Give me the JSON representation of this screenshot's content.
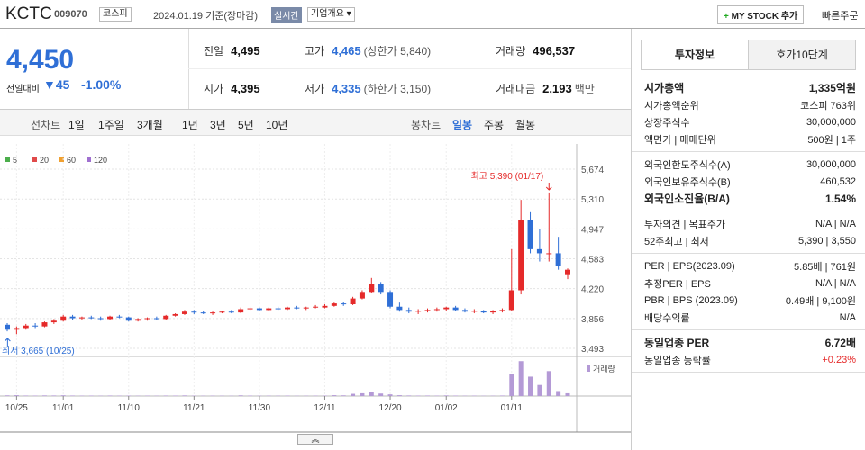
{
  "header": {
    "name": "KCTC",
    "code": "009070",
    "market": "코스피",
    "date": "2024.01.19 기준(장마감)",
    "realtime": "실시간",
    "overview": "기업개요",
    "mystock": "MY STOCK 추가",
    "quick_order": "빠른주문"
  },
  "price": {
    "current": "4,450",
    "change_label": "전일대비",
    "change": "45",
    "change_pct": "-1.00%"
  },
  "quote": {
    "rows": [
      [
        {
          "label": "전일",
          "value": "4,495"
        },
        {
          "label": "고가",
          "value": "4,465",
          "note": "(상한가 5,840)"
        },
        {
          "label": "거래량",
          "value": "496,537"
        }
      ],
      [
        {
          "label": "시가",
          "value": "4,395"
        },
        {
          "label": "저가",
          "value": "4,335",
          "note": "(하한가 3,150)"
        },
        {
          "label": "거래대금",
          "value": "2,193",
          "note": "백만"
        }
      ]
    ]
  },
  "toolbar": {
    "line_label": "선차트",
    "line_periods": [
      "1일",
      "1주일",
      "3개월",
      "1년",
      "3년",
      "5년",
      "10년"
    ],
    "candle_label": "봉차트",
    "candle_periods": [
      "일봉",
      "주봉",
      "월봉"
    ]
  },
  "chart_data": {
    "type": "candlestick",
    "up_color": "#e52a2a",
    "down_color": "#2f6fd6",
    "ma_legend": [
      {
        "name": "5",
        "color": "#4cae4c"
      },
      {
        "name": "20",
        "color": "#e04a4a"
      },
      {
        "name": "60",
        "color": "#f0a030"
      },
      {
        "name": "120",
        "color": "#a070d0"
      }
    ],
    "categories": [
      null,
      "10/25",
      null,
      null,
      null,
      null,
      "11/01",
      null,
      null,
      null,
      null,
      null,
      null,
      "11/10",
      null,
      null,
      null,
      null,
      null,
      null,
      "11/21",
      null,
      null,
      null,
      null,
      null,
      null,
      "11/30",
      null,
      null,
      null,
      null,
      null,
      null,
      "12/11",
      null,
      null,
      null,
      null,
      null,
      null,
      "12/20",
      null,
      null,
      null,
      null,
      null,
      "01/02",
      null,
      null,
      null,
      null,
      null,
      null,
      "01/11",
      null,
      null,
      null,
      null,
      null,
      null
    ],
    "open": [
      3780,
      3720,
      3740,
      3770,
      3760,
      3810,
      3830,
      3880,
      3860,
      3870,
      3860,
      3850,
      3880,
      3870,
      3830,
      3850,
      3860,
      3850,
      3890,
      3910,
      3940,
      3930,
      3920,
      3930,
      3940,
      3930,
      3970,
      3980,
      3960,
      3980,
      3970,
      3990,
      3980,
      3990,
      3990,
      4010,
      4040,
      4030,
      4100,
      4180,
      4280,
      4180,
      4000,
      3960,
      3940,
      3950,
      3960,
      3970,
      3990,
      3960,
      3940,
      3950,
      3930,
      3950,
      3960,
      4200,
      5050,
      4700,
      4650,
      4650,
      4395
    ],
    "high": [
      3800,
      3760,
      3790,
      3800,
      3820,
      3850,
      3900,
      3900,
      3880,
      3890,
      3880,
      3890,
      3900,
      3880,
      3860,
      3870,
      3880,
      3900,
      3920,
      3960,
      3960,
      3950,
      3940,
      3950,
      3960,
      3990,
      4000,
      3990,
      3990,
      4000,
      4000,
      4010,
      4000,
      4020,
      4030,
      4050,
      4060,
      4120,
      4200,
      4350,
      4300,
      4200,
      4050,
      3990,
      3970,
      3980,
      3990,
      4000,
      4010,
      3980,
      3970,
      3960,
      3960,
      3980,
      4700,
      5300,
      5150,
      4950,
      5390,
      4850,
      4465
    ],
    "low": [
      3700,
      3665,
      3720,
      3740,
      3750,
      3790,
      3820,
      3840,
      3840,
      3850,
      3830,
      3840,
      3860,
      3820,
      3820,
      3830,
      3840,
      3840,
      3880,
      3900,
      3910,
      3910,
      3900,
      3920,
      3920,
      3920,
      3950,
      3950,
      3950,
      3960,
      3960,
      3970,
      3960,
      3980,
      3980,
      4000,
      4010,
      4020,
      4090,
      4170,
      4150,
      3980,
      3940,
      3920,
      3910,
      3930,
      3940,
      3950,
      3950,
      3930,
      3920,
      3920,
      3910,
      3930,
      3950,
      4150,
      4650,
      4550,
      4550,
      4450,
      4335
    ],
    "close": [
      3720,
      3740,
      3770,
      3760,
      3810,
      3830,
      3880,
      3860,
      3870,
      3860,
      3850,
      3880,
      3870,
      3830,
      3850,
      3860,
      3850,
      3890,
      3910,
      3940,
      3930,
      3920,
      3930,
      3940,
      3930,
      3970,
      3980,
      3960,
      3980,
      3970,
      3990,
      3980,
      3990,
      4000,
      4010,
      4040,
      4030,
      4100,
      4180,
      4280,
      4180,
      4000,
      3960,
      3940,
      3950,
      3960,
      3970,
      3990,
      3960,
      3940,
      3950,
      3930,
      3950,
      3960,
      4200,
      5050,
      4700,
      4650,
      4650,
      4495,
      4450
    ],
    "volume": [
      120000,
      150000,
      90000,
      80000,
      110000,
      100000,
      130000,
      90000,
      70000,
      80000,
      60000,
      90000,
      70000,
      80000,
      60000,
      70000,
      60000,
      90000,
      80000,
      110000,
      70000,
      60000,
      70000,
      60000,
      50000,
      120000,
      80000,
      60000,
      70000,
      60000,
      80000,
      50000,
      60000,
      70000,
      80000,
      150000,
      120000,
      400000,
      500000,
      700000,
      450000,
      300000,
      150000,
      100000,
      80000,
      90000,
      70000,
      110000,
      80000,
      60000,
      70000,
      50000,
      60000,
      90000,
      4000000,
      6300000,
      3500000,
      2000000,
      4500000,
      900000,
      496537
    ],
    "volume_label": "거래량",
    "volume_ylim": [
      0,
      6500000
    ],
    "ylim": [
      3493,
      5674
    ],
    "yticks": [
      {
        "value": 3493,
        "label": "3,493"
      },
      {
        "value": 3856,
        "label": "3,856"
      },
      {
        "value": 4220,
        "label": "4,220"
      },
      {
        "value": 4583,
        "label": "4,583"
      },
      {
        "value": 4947,
        "label": "4,947"
      },
      {
        "value": 5310,
        "label": "5,310"
      },
      {
        "value": 5674,
        "label": "5,674"
      }
    ],
    "high_label": "최고 5,390 (01/17)",
    "low_label": "최저 3,665 (10/25)"
  },
  "info": {
    "tabs": [
      "투자정보",
      "호가10단계"
    ],
    "sections": [
      [
        {
          "label": "시가총액",
          "value": "1,335억원",
          "emphasis": true
        },
        {
          "label": "시가총액순위",
          "value": "코스피 763위"
        },
        {
          "label": "상장주식수",
          "value": "30,000,000"
        },
        {
          "label": "액면가 | 매매단위",
          "value": "500원 | 1주"
        }
      ],
      [
        {
          "label": "외국인한도주식수(A)",
          "value": "30,000,000"
        },
        {
          "label": "외국인보유주식수(B)",
          "value": "460,532"
        },
        {
          "label": "외국인소진율(B/A)",
          "value": "1.54%",
          "emphasis": true
        }
      ],
      [
        {
          "label": "투자의견 | 목표주가",
          "value": "N/A | N/A"
        },
        {
          "label": "52주최고 | 최저",
          "value": "5,390 | 3,550"
        }
      ],
      [
        {
          "label": "PER | EPS(2023.09)",
          "value": "5.85배 | 761원"
        },
        {
          "label": "추정PER | EPS",
          "value": "N/A | N/A"
        },
        {
          "label": "PBR | BPS (2023.09)",
          "value": "0.49배 | 9,100원"
        },
        {
          "label": "배당수익률",
          "value": "N/A"
        }
      ],
      [
        {
          "label": "동일업종 PER",
          "value": "6.72배",
          "emphasis": true
        },
        {
          "label": "동일업종 등락률",
          "value": "+0.23%",
          "color": "#e52a2a"
        }
      ]
    ]
  }
}
